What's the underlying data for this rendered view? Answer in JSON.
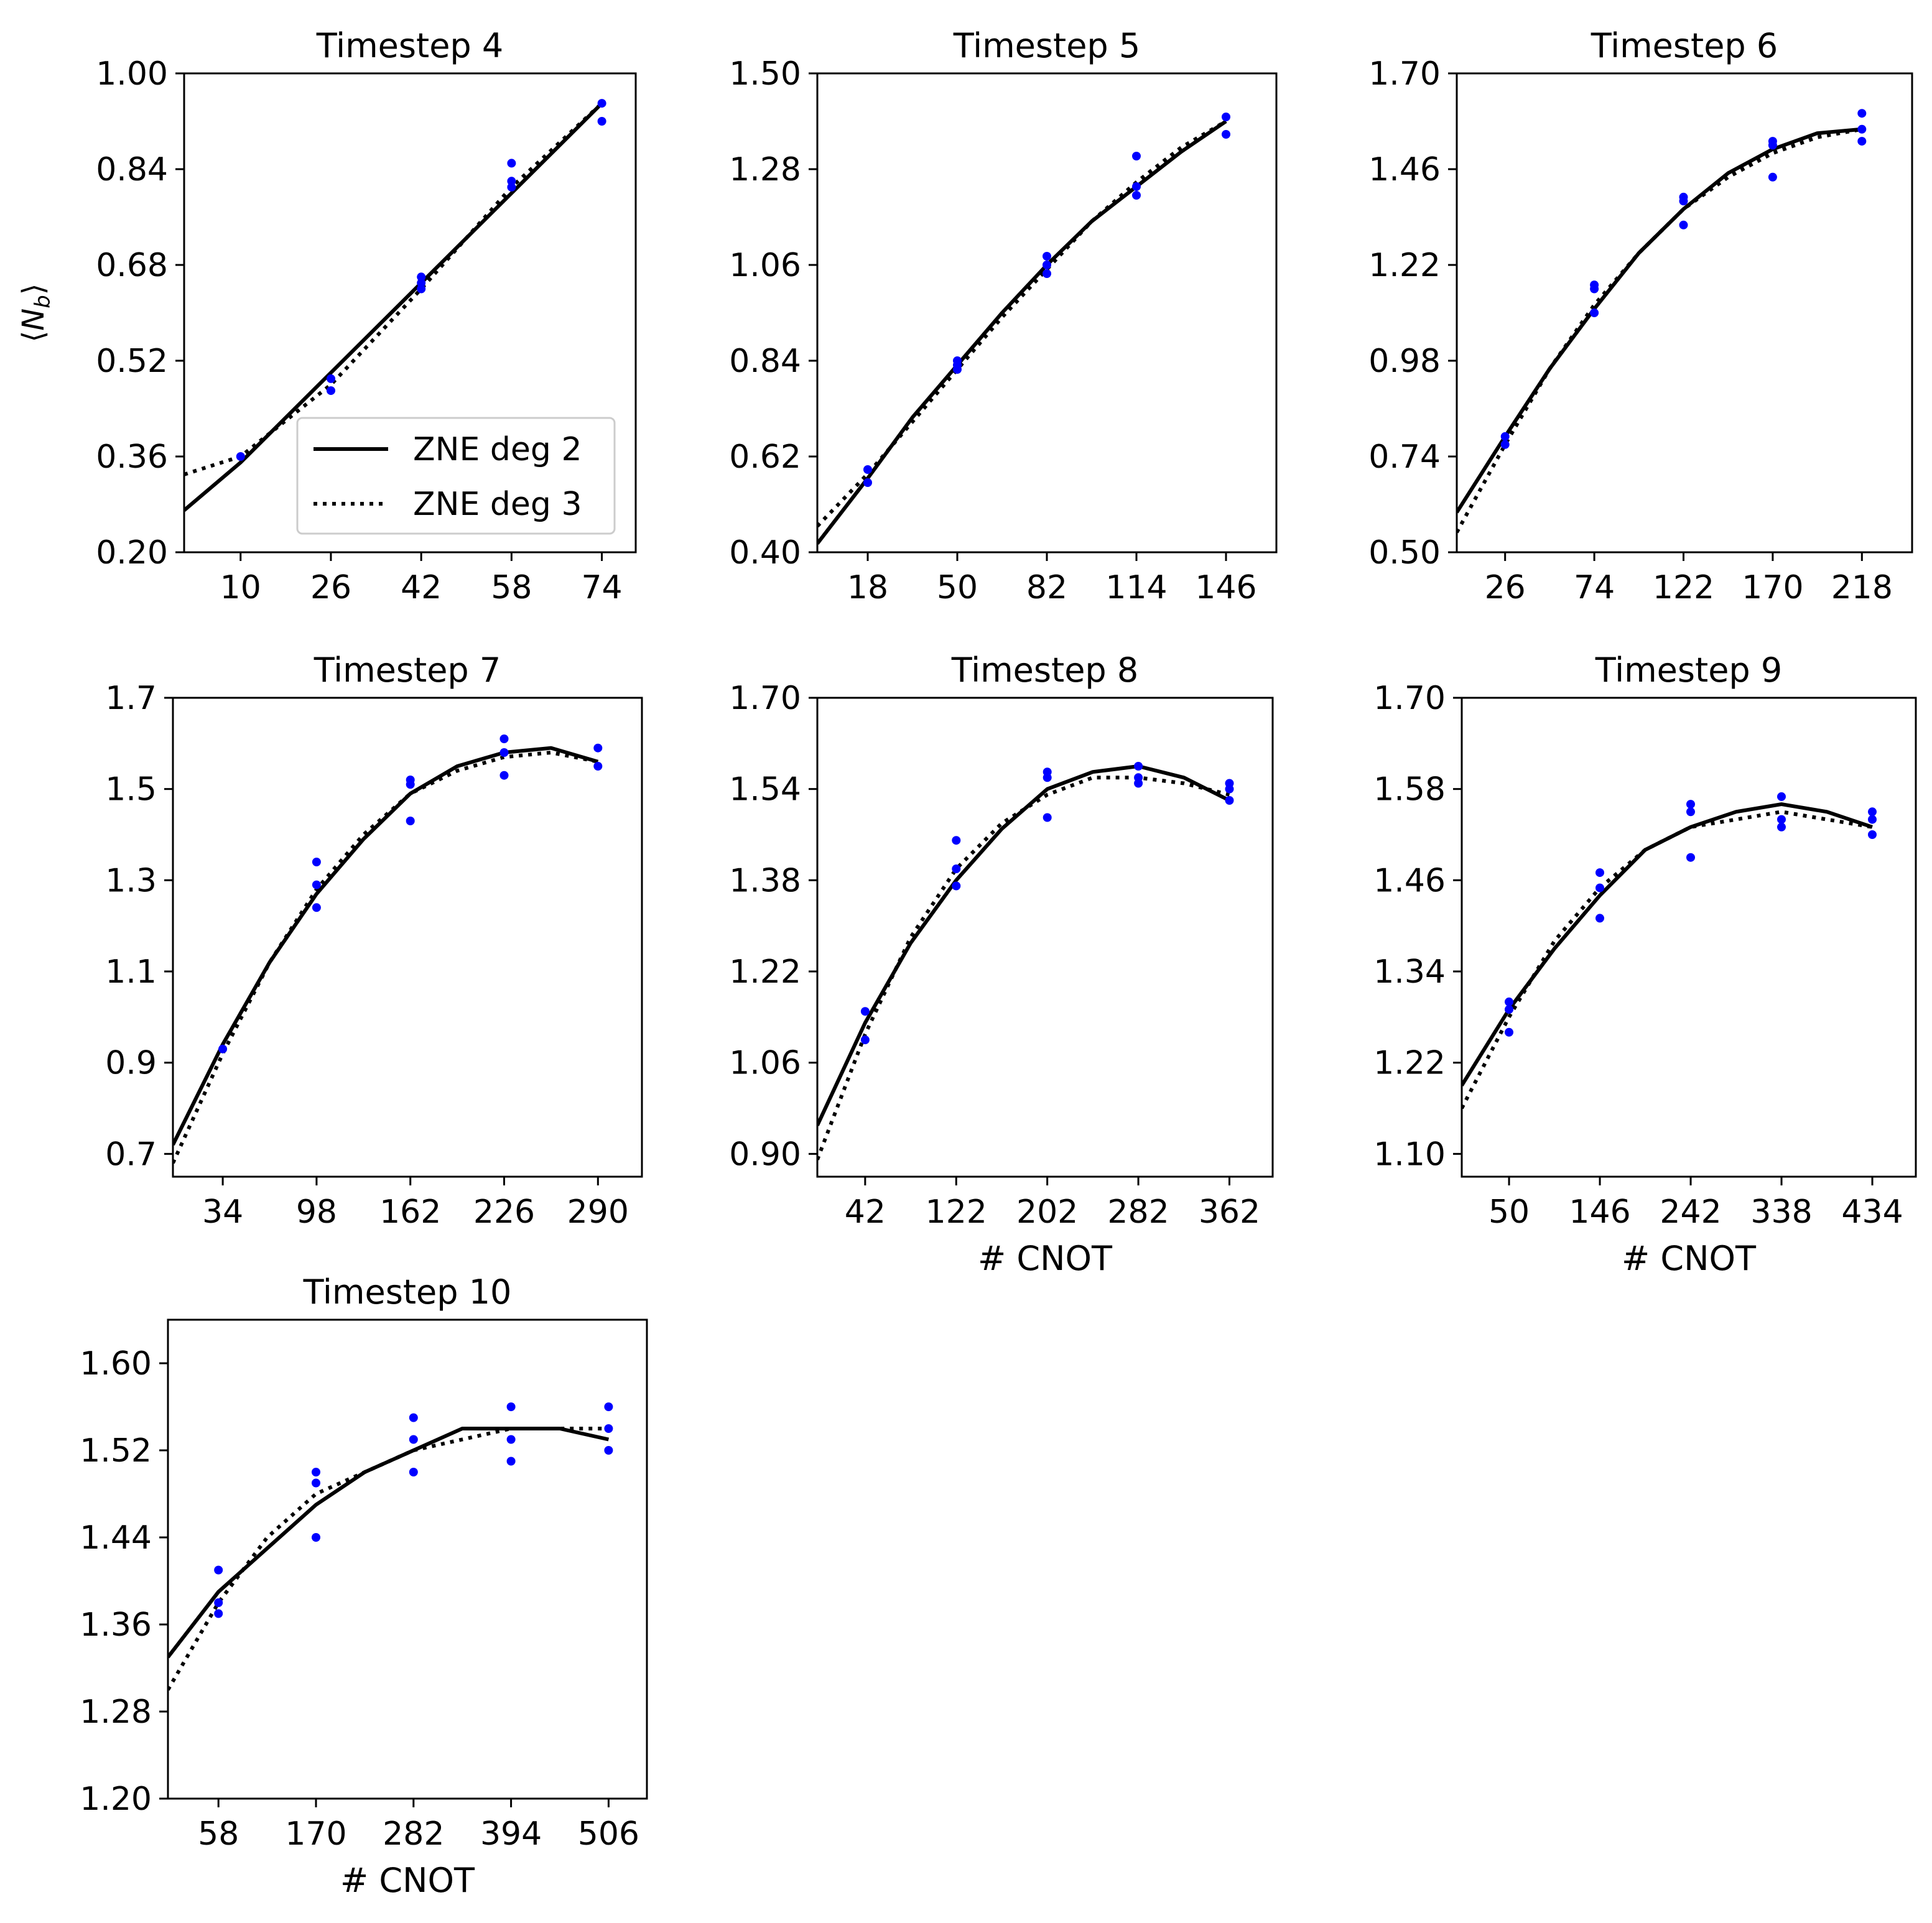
{
  "figure": {
    "y_axis_label": "⟨N_b⟩",
    "colors": {
      "points": "#0000ff",
      "lines": "#000000",
      "axes": "#000000",
      "legend_border": "#cccccc"
    },
    "legend": {
      "entries": [
        {
          "label": "ZNE deg 2",
          "style": "solid"
        },
        {
          "label": "ZNE deg 3",
          "style": "dotted"
        }
      ],
      "location": "lower-right of first panel"
    }
  },
  "chart_data": [
    {
      "type": "scatter",
      "title": "Timestep 4",
      "xlabel": "",
      "ylabel": "⟨N_b⟩",
      "xlim": [
        0,
        80
      ],
      "ylim": [
        0.2,
        1.0
      ],
      "xticks": [
        10,
        26,
        42,
        58,
        74
      ],
      "yticks": [
        "0.20",
        "0.36",
        "0.52",
        "0.68",
        "0.84",
        "1.00"
      ],
      "points": [
        [
          10,
          0.36
        ],
        [
          26,
          0.47
        ],
        [
          26,
          0.49
        ],
        [
          42,
          0.64
        ],
        [
          42,
          0.65
        ],
        [
          42,
          0.66
        ],
        [
          58,
          0.81
        ],
        [
          58,
          0.82
        ],
        [
          58,
          0.85
        ],
        [
          74,
          0.92
        ],
        [
          74,
          0.95
        ]
      ],
      "series": [
        {
          "name": "ZNE deg 2",
          "style": "solid",
          "x": [
            0,
            10,
            26,
            42,
            58,
            74
          ],
          "y": [
            0.27,
            0.35,
            0.5,
            0.65,
            0.8,
            0.95
          ]
        },
        {
          "name": "ZNE deg 3",
          "style": "dotted",
          "x": [
            0,
            10,
            26,
            42,
            58,
            74
          ],
          "y": [
            0.33,
            0.36,
            0.48,
            0.64,
            0.81,
            0.95
          ]
        }
      ],
      "legend": true
    },
    {
      "type": "scatter",
      "title": "Timestep 5",
      "xlabel": "",
      "ylabel": "",
      "xlim": [
        0,
        164
      ],
      "ylim": [
        0.4,
        1.5
      ],
      "xticks": [
        18,
        50,
        82,
        114,
        146
      ],
      "yticks": [
        "0.40",
        "0.62",
        "0.84",
        "1.06",
        "1.28",
        "1.50"
      ],
      "points": [
        [
          18,
          0.56
        ],
        [
          18,
          0.59
        ],
        [
          50,
          0.82
        ],
        [
          50,
          0.83
        ],
        [
          50,
          0.84
        ],
        [
          82,
          1.04
        ],
        [
          82,
          1.06
        ],
        [
          82,
          1.08
        ],
        [
          114,
          1.22
        ],
        [
          114,
          1.24
        ],
        [
          114,
          1.31
        ],
        [
          146,
          1.36
        ],
        [
          146,
          1.4
        ]
      ],
      "series": [
        {
          "name": "ZNE deg 2",
          "style": "solid",
          "x": [
            0,
            18,
            34,
            50,
            66,
            82,
            98,
            114,
            130,
            146
          ],
          "y": [
            0.42,
            0.57,
            0.71,
            0.83,
            0.95,
            1.06,
            1.16,
            1.24,
            1.32,
            1.39
          ]
        },
        {
          "name": "ZNE deg 3",
          "style": "dotted",
          "x": [
            0,
            18,
            34,
            50,
            66,
            82,
            98,
            114,
            130,
            146
          ],
          "y": [
            0.46,
            0.58,
            0.7,
            0.82,
            0.94,
            1.05,
            1.16,
            1.25,
            1.33,
            1.39
          ]
        }
      ],
      "legend": false
    },
    {
      "type": "scatter",
      "title": "Timestep 6",
      "xlabel": "",
      "ylabel": "",
      "xlim": [
        0,
        245
      ],
      "ylim": [
        0.5,
        1.7
      ],
      "xticks": [
        26,
        74,
        122,
        170,
        218
      ],
      "yticks": [
        "0.50",
        "0.74",
        "0.98",
        "1.22",
        "1.46",
        "1.70"
      ],
      "points": [
        [
          26,
          0.77
        ],
        [
          26,
          0.79
        ],
        [
          74,
          1.1
        ],
        [
          74,
          1.16
        ],
        [
          74,
          1.17
        ],
        [
          122,
          1.32
        ],
        [
          122,
          1.38
        ],
        [
          122,
          1.39
        ],
        [
          170,
          1.44
        ],
        [
          170,
          1.52
        ],
        [
          170,
          1.53
        ],
        [
          218,
          1.53
        ],
        [
          218,
          1.56
        ],
        [
          218,
          1.6
        ]
      ],
      "series": [
        {
          "name": "ZNE deg 2",
          "style": "solid",
          "x": [
            0,
            26,
            50,
            74,
            98,
            122,
            146,
            170,
            194,
            218
          ],
          "y": [
            0.6,
            0.79,
            0.96,
            1.11,
            1.25,
            1.36,
            1.45,
            1.51,
            1.55,
            1.56
          ]
        },
        {
          "name": "ZNE deg 3",
          "style": "dotted",
          "x": [
            0,
            26,
            50,
            74,
            98,
            122,
            146,
            170,
            194,
            218
          ],
          "y": [
            0.55,
            0.77,
            0.96,
            1.12,
            1.25,
            1.36,
            1.44,
            1.5,
            1.54,
            1.56
          ]
        }
      ],
      "legend": false
    },
    {
      "type": "scatter",
      "title": "Timestep 7",
      "xlabel": "",
      "ylabel": "",
      "xlim": [
        0,
        320
      ],
      "ylim": [
        0.65,
        1.7
      ],
      "xticks": [
        34,
        98,
        162,
        226,
        290
      ],
      "yticks": [
        "0.7",
        "0.9",
        "1.1",
        "1.3",
        "1.5",
        "1.7"
      ],
      "points": [
        [
          34,
          0.93
        ],
        [
          98,
          1.24
        ],
        [
          98,
          1.29
        ],
        [
          98,
          1.34
        ],
        [
          162,
          1.43
        ],
        [
          162,
          1.51
        ],
        [
          162,
          1.52
        ],
        [
          226,
          1.53
        ],
        [
          226,
          1.58
        ],
        [
          226,
          1.61
        ],
        [
          290,
          1.55
        ],
        [
          290,
          1.59
        ]
      ],
      "series": [
        {
          "name": "ZNE deg 2",
          "style": "solid",
          "x": [
            0,
            34,
            66,
            98,
            130,
            162,
            194,
            226,
            258,
            290
          ],
          "y": [
            0.72,
            0.94,
            1.12,
            1.27,
            1.39,
            1.49,
            1.55,
            1.58,
            1.59,
            1.56
          ]
        },
        {
          "name": "ZNE deg 3",
          "style": "dotted",
          "x": [
            0,
            34,
            66,
            98,
            130,
            162,
            194,
            226,
            258,
            290
          ],
          "y": [
            0.68,
            0.92,
            1.12,
            1.28,
            1.4,
            1.49,
            1.54,
            1.57,
            1.58,
            1.56
          ]
        }
      ],
      "legend": false
    },
    {
      "type": "scatter",
      "title": "Timestep 8",
      "xlabel": "# CNOT",
      "ylabel": "",
      "xlim": [
        0,
        400
      ],
      "ylim": [
        0.86,
        1.7
      ],
      "xticks": [
        42,
        122,
        202,
        282,
        362
      ],
      "yticks": [
        "0.90",
        "1.06",
        "1.22",
        "1.38",
        "1.54",
        "1.70"
      ],
      "points": [
        [
          42,
          1.1
        ],
        [
          42,
          1.15
        ],
        [
          122,
          1.37
        ],
        [
          122,
          1.4
        ],
        [
          122,
          1.45
        ],
        [
          202,
          1.49
        ],
        [
          202,
          1.56
        ],
        [
          202,
          1.57
        ],
        [
          282,
          1.55
        ],
        [
          282,
          1.56
        ],
        [
          282,
          1.58
        ],
        [
          362,
          1.52
        ],
        [
          362,
          1.54
        ],
        [
          362,
          1.55
        ]
      ],
      "series": [
        {
          "name": "ZNE deg 2",
          "style": "solid",
          "x": [
            0,
            42,
            82,
            122,
            162,
            202,
            242,
            282,
            322,
            362
          ],
          "y": [
            0.95,
            1.13,
            1.27,
            1.38,
            1.47,
            1.54,
            1.57,
            1.58,
            1.56,
            1.52
          ]
        },
        {
          "name": "ZNE deg 3",
          "style": "dotted",
          "x": [
            0,
            42,
            82,
            122,
            162,
            202,
            242,
            282,
            322,
            362
          ],
          "y": [
            0.89,
            1.11,
            1.28,
            1.4,
            1.48,
            1.53,
            1.56,
            1.56,
            1.55,
            1.53
          ]
        }
      ],
      "legend": false
    },
    {
      "type": "scatter",
      "title": "Timestep 9",
      "xlabel": "# CNOT",
      "ylabel": "",
      "xlim": [
        0,
        480
      ],
      "ylim": [
        1.07,
        1.7
      ],
      "xticks": [
        50,
        146,
        242,
        338,
        434
      ],
      "yticks": [
        "1.10",
        "1.22",
        "1.34",
        "1.46",
        "1.58",
        "1.70"
      ],
      "points": [
        [
          50,
          1.26
        ],
        [
          50,
          1.29
        ],
        [
          50,
          1.3
        ],
        [
          146,
          1.41
        ],
        [
          146,
          1.45
        ],
        [
          146,
          1.47
        ],
        [
          242,
          1.49
        ],
        [
          242,
          1.55
        ],
        [
          242,
          1.56
        ],
        [
          338,
          1.53
        ],
        [
          338,
          1.54
        ],
        [
          338,
          1.57
        ],
        [
          434,
          1.52
        ],
        [
          434,
          1.54
        ],
        [
          434,
          1.55
        ]
      ],
      "series": [
        {
          "name": "ZNE deg 2",
          "style": "solid",
          "x": [
            0,
            50,
            98,
            146,
            194,
            242,
            290,
            338,
            386,
            434
          ],
          "y": [
            1.19,
            1.29,
            1.37,
            1.44,
            1.5,
            1.53,
            1.55,
            1.56,
            1.55,
            1.53
          ]
        },
        {
          "name": "ZNE deg 3",
          "style": "dotted",
          "x": [
            0,
            50,
            98,
            146,
            194,
            242,
            290,
            338,
            386,
            434
          ],
          "y": [
            1.16,
            1.28,
            1.38,
            1.45,
            1.5,
            1.53,
            1.54,
            1.55,
            1.54,
            1.53
          ]
        }
      ],
      "legend": false
    },
    {
      "type": "scatter",
      "title": "Timestep 10",
      "xlabel": "# CNOT",
      "ylabel": "",
      "xlim": [
        0,
        550
      ],
      "ylim": [
        1.2,
        1.64
      ],
      "xticks": [
        58,
        170,
        282,
        394,
        506
      ],
      "yticks": [
        "1.20",
        "1.28",
        "1.36",
        "1.44",
        "1.52",
        "1.60"
      ],
      "points": [
        [
          58,
          1.37
        ],
        [
          58,
          1.38
        ],
        [
          58,
          1.41
        ],
        [
          170,
          1.44
        ],
        [
          170,
          1.49
        ],
        [
          170,
          1.5
        ],
        [
          282,
          1.5
        ],
        [
          282,
          1.53
        ],
        [
          282,
          1.55
        ],
        [
          394,
          1.51
        ],
        [
          394,
          1.53
        ],
        [
          394,
          1.56
        ],
        [
          506,
          1.52
        ],
        [
          506,
          1.54
        ],
        [
          506,
          1.56
        ]
      ],
      "series": [
        {
          "name": "ZNE deg 2",
          "style": "solid",
          "x": [
            0,
            58,
            114,
            170,
            226,
            282,
            338,
            394,
            450,
            506
          ],
          "y": [
            1.33,
            1.39,
            1.43,
            1.47,
            1.5,
            1.52,
            1.54,
            1.54,
            1.54,
            1.53
          ]
        },
        {
          "name": "ZNE deg 3",
          "style": "dotted",
          "x": [
            0,
            58,
            114,
            170,
            226,
            282,
            338,
            394,
            450,
            506
          ],
          "y": [
            1.3,
            1.38,
            1.44,
            1.48,
            1.5,
            1.52,
            1.53,
            1.54,
            1.54,
            1.54
          ]
        }
      ],
      "legend": false
    }
  ]
}
